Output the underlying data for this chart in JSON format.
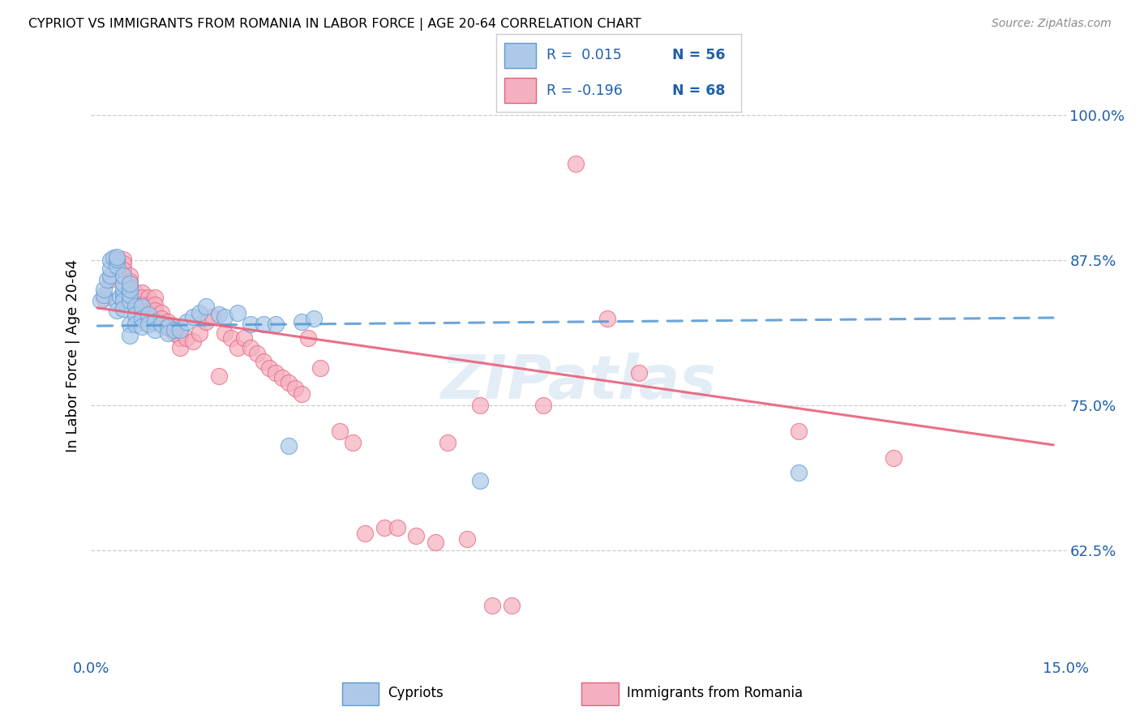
{
  "title": "CYPRIOT VS IMMIGRANTS FROM ROMANIA IN LABOR FORCE | AGE 20-64 CORRELATION CHART",
  "source_text": "Source: ZipAtlas.com",
  "ylabel": "In Labor Force | Age 20-64",
  "y_ticks": [
    0.625,
    0.75,
    0.875,
    1.0
  ],
  "y_tick_labels": [
    "62.5%",
    "75.0%",
    "87.5%",
    "100.0%"
  ],
  "xlim": [
    -0.001,
    0.152
  ],
  "ylim": [
    0.545,
    1.04
  ],
  "blue_fill": "#aec9e8",
  "blue_edge": "#5b9bd5",
  "pink_fill": "#f4b0c0",
  "pink_edge": "#e8607a",
  "blue_trend_color": "#5b9bd5",
  "pink_trend_color": "#e8607a",
  "legend_r1": "R =  0.015",
  "legend_n1": "N = 56",
  "legend_r2": "R = -0.196",
  "legend_n2": "N = 68",
  "legend_text_color": "#1f5faa",
  "axis_label_color": "#1f5faa",
  "watermark": "ZIPatlas",
  "blue_trend_x": [
    0.0,
    0.15
  ],
  "blue_trend_y": [
    0.8185,
    0.8255
  ],
  "pink_trend_x": [
    0.0,
    0.15
  ],
  "pink_trend_y": [
    0.834,
    0.716
  ],
  "blue_x": [
    0.0005,
    0.001,
    0.001,
    0.0015,
    0.002,
    0.002,
    0.002,
    0.0025,
    0.003,
    0.003,
    0.003,
    0.003,
    0.003,
    0.0035,
    0.004,
    0.004,
    0.004,
    0.004,
    0.004,
    0.004,
    0.005,
    0.005,
    0.005,
    0.005,
    0.005,
    0.005,
    0.006,
    0.006,
    0.006,
    0.007,
    0.007,
    0.007,
    0.008,
    0.008,
    0.009,
    0.009,
    0.01,
    0.011,
    0.011,
    0.012,
    0.013,
    0.014,
    0.015,
    0.016,
    0.017,
    0.019,
    0.02,
    0.022,
    0.024,
    0.026,
    0.028,
    0.03,
    0.032,
    0.034,
    0.06,
    0.11
  ],
  "blue_y": [
    0.84,
    0.845,
    0.85,
    0.858,
    0.862,
    0.868,
    0.875,
    0.877,
    0.87,
    0.876,
    0.878,
    0.84,
    0.832,
    0.844,
    0.845,
    0.85,
    0.855,
    0.862,
    0.84,
    0.833,
    0.84,
    0.845,
    0.85,
    0.855,
    0.82,
    0.81,
    0.835,
    0.828,
    0.82,
    0.835,
    0.825,
    0.818,
    0.828,
    0.82,
    0.822,
    0.815,
    0.82,
    0.818,
    0.812,
    0.815,
    0.815,
    0.822,
    0.826,
    0.83,
    0.835,
    0.828,
    0.826,
    0.83,
    0.82,
    0.82,
    0.82,
    0.715,
    0.822,
    0.825,
    0.685,
    0.692
  ],
  "pink_x": [
    0.001,
    0.002,
    0.003,
    0.003,
    0.004,
    0.004,
    0.004,
    0.005,
    0.005,
    0.005,
    0.006,
    0.006,
    0.006,
    0.007,
    0.007,
    0.007,
    0.008,
    0.008,
    0.009,
    0.009,
    0.009,
    0.01,
    0.01,
    0.011,
    0.011,
    0.012,
    0.012,
    0.013,
    0.013,
    0.014,
    0.015,
    0.016,
    0.017,
    0.018,
    0.019,
    0.02,
    0.021,
    0.022,
    0.023,
    0.024,
    0.025,
    0.026,
    0.027,
    0.028,
    0.029,
    0.03,
    0.031,
    0.032,
    0.033,
    0.035,
    0.038,
    0.04,
    0.042,
    0.045,
    0.047,
    0.05,
    0.053,
    0.055,
    0.058,
    0.06,
    0.062,
    0.065,
    0.07,
    0.075,
    0.08,
    0.085,
    0.11,
    0.125
  ],
  "pink_y": [
    0.842,
    0.858,
    0.876,
    0.872,
    0.876,
    0.872,
    0.867,
    0.862,
    0.857,
    0.852,
    0.847,
    0.843,
    0.837,
    0.847,
    0.843,
    0.837,
    0.843,
    0.837,
    0.843,
    0.837,
    0.832,
    0.83,
    0.825,
    0.822,
    0.817,
    0.817,
    0.812,
    0.808,
    0.8,
    0.808,
    0.805,
    0.812,
    0.822,
    0.826,
    0.775,
    0.812,
    0.808,
    0.8,
    0.808,
    0.8,
    0.795,
    0.788,
    0.782,
    0.778,
    0.774,
    0.77,
    0.765,
    0.76,
    0.808,
    0.782,
    0.728,
    0.718,
    0.64,
    0.645,
    0.645,
    0.638,
    0.632,
    0.718,
    0.635,
    0.75,
    0.578,
    0.578,
    0.75,
    0.958,
    0.825,
    0.778,
    0.728,
    0.705
  ]
}
